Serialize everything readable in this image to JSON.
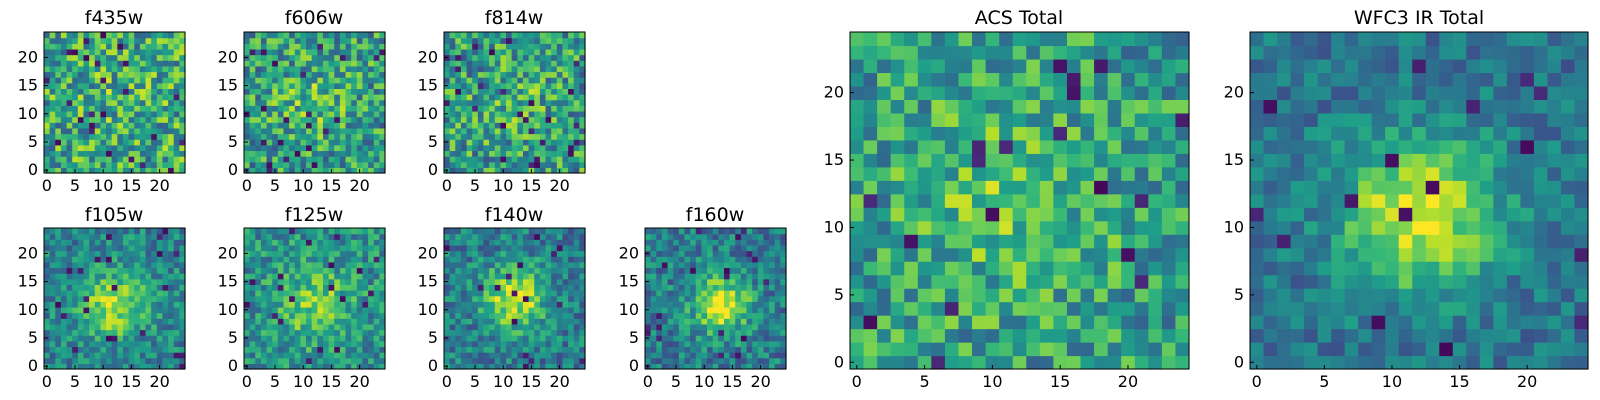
{
  "chart_data": [
    {
      "id": "f435w",
      "type": "heatmap",
      "title": "f435w",
      "grid_size": 25,
      "xlim": [
        -0.5,
        24.5
      ],
      "ylim": [
        -0.5,
        24.5
      ],
      "xticks": [
        0,
        5,
        10,
        15,
        20
      ],
      "yticks": [
        0,
        5,
        10,
        15,
        20
      ],
      "colormap": "viridis",
      "signal": {
        "center": [
          12,
          12
        ],
        "sigma": 5.0,
        "amplitude": 0.05
      },
      "noise": 0.62,
      "base": 0.6,
      "seed": 11
    },
    {
      "id": "f606w",
      "type": "heatmap",
      "title": "f606w",
      "grid_size": 25,
      "xlim": [
        -0.5,
        24.5
      ],
      "ylim": [
        -0.5,
        24.5
      ],
      "xticks": [
        0,
        5,
        10,
        15,
        20
      ],
      "yticks": [
        0,
        5,
        10,
        15,
        20
      ],
      "colormap": "viridis",
      "signal": {
        "center": [
          12,
          12
        ],
        "sigma": 4.5,
        "amplitude": 0.15
      },
      "noise": 0.58,
      "base": 0.55,
      "seed": 23
    },
    {
      "id": "f814w",
      "type": "heatmap",
      "title": "f814w",
      "grid_size": 25,
      "xlim": [
        -0.5,
        24.5
      ],
      "ylim": [
        -0.5,
        24.5
      ],
      "xticks": [
        0,
        5,
        10,
        15,
        20
      ],
      "yticks": [
        0,
        5,
        10,
        15,
        20
      ],
      "colormap": "viridis",
      "signal": {
        "center": [
          12,
          12
        ],
        "sigma": 4.5,
        "amplitude": 0.12
      },
      "noise": 0.6,
      "base": 0.55,
      "seed": 37
    },
    {
      "id": "f105w",
      "type": "heatmap",
      "title": "f105w",
      "grid_size": 25,
      "xlim": [
        -0.5,
        24.5
      ],
      "ylim": [
        -0.5,
        24.5
      ],
      "xticks": [
        0,
        5,
        10,
        15,
        20
      ],
      "yticks": [
        0,
        5,
        10,
        15,
        20
      ],
      "colormap": "viridis",
      "signal": {
        "center": [
          12,
          11
        ],
        "sigma": 4.0,
        "amplitude": 0.45
      },
      "noise": 0.4,
      "base": 0.45,
      "seed": 41
    },
    {
      "id": "f125w",
      "type": "heatmap",
      "title": "f125w",
      "grid_size": 25,
      "xlim": [
        -0.5,
        24.5
      ],
      "ylim": [
        -0.5,
        24.5
      ],
      "xticks": [
        0,
        5,
        10,
        15,
        20
      ],
      "yticks": [
        0,
        5,
        10,
        15,
        20
      ],
      "colormap": "viridis",
      "signal": {
        "center": [
          12,
          11
        ],
        "sigma": 4.5,
        "amplitude": 0.3
      },
      "noise": 0.42,
      "base": 0.5,
      "seed": 53
    },
    {
      "id": "f140w",
      "type": "heatmap",
      "title": "f140w",
      "grid_size": 25,
      "xlim": [
        -0.5,
        24.5
      ],
      "ylim": [
        -0.5,
        24.5
      ],
      "xticks": [
        0,
        5,
        10,
        15,
        20
      ],
      "yticks": [
        0,
        5,
        10,
        15,
        20
      ],
      "colormap": "viridis",
      "signal": {
        "center": [
          12,
          12
        ],
        "sigma": 4.0,
        "amplitude": 0.5
      },
      "noise": 0.4,
      "base": 0.42,
      "seed": 67
    },
    {
      "id": "f160w",
      "type": "heatmap",
      "title": "f160w",
      "grid_size": 25,
      "xlim": [
        -0.5,
        24.5
      ],
      "ylim": [
        -0.5,
        24.5
      ],
      "xticks": [
        0,
        5,
        10,
        15,
        20
      ],
      "yticks": [
        0,
        5,
        10,
        15,
        20
      ],
      "colormap": "viridis",
      "signal": {
        "center": [
          13,
          11
        ],
        "sigma": 3.5,
        "amplitude": 0.55
      },
      "noise": 0.4,
      "base": 0.42,
      "seed": 79
    },
    {
      "id": "acs-total",
      "type": "heatmap",
      "title": "ACS Total",
      "grid_size": 25,
      "xlim": [
        -0.5,
        24.5
      ],
      "ylim": [
        -0.5,
        24.5
      ],
      "xticks": [
        0,
        5,
        10,
        15,
        20
      ],
      "yticks": [
        0,
        5,
        10,
        15,
        20
      ],
      "colormap": "viridis",
      "signal": {
        "center": [
          11,
          12
        ],
        "sigma": 5.0,
        "amplitude": 0.2
      },
      "noise": 0.5,
      "base": 0.55,
      "seed": 97
    },
    {
      "id": "wfc3-ir-total",
      "type": "heatmap",
      "title": "WFC3 IR Total",
      "grid_size": 25,
      "xlim": [
        -0.5,
        24.5
      ],
      "ylim": [
        -0.5,
        24.5
      ],
      "xticks": [
        0,
        5,
        10,
        15,
        20
      ],
      "yticks": [
        0,
        5,
        10,
        15,
        20
      ],
      "colormap": "viridis",
      "signal": {
        "center": [
          12,
          11
        ],
        "sigma": 4.0,
        "amplitude": 0.6
      },
      "noise": 0.3,
      "base": 0.38,
      "seed": 113
    }
  ]
}
